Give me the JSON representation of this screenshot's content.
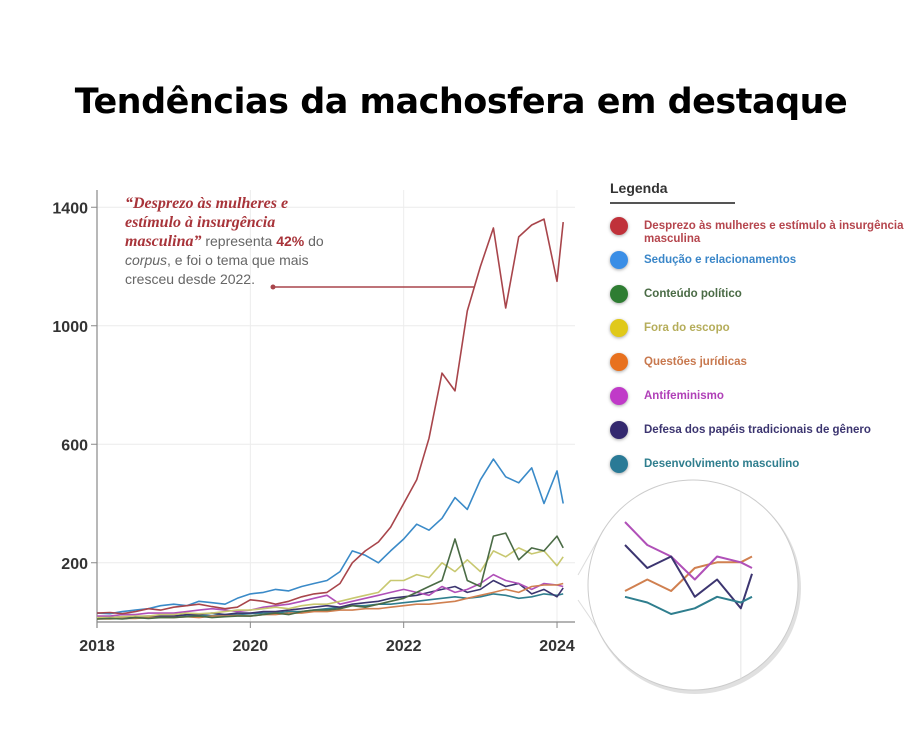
{
  "title": "Tendências da machosfera em destaque",
  "annotation": {
    "highlight": "“Desprezo às mulheres e estímulo à insurgência masculina”",
    "text1": " representa ",
    "percent": "42%",
    "text2": " do ",
    "italic": "corpus",
    "text3": ", e foi o tema que mais cresceu desde 2022."
  },
  "legend": {
    "title": "Legenda",
    "items": [
      {
        "label": "Desprezo às mulheres e estímulo à insurgência masculina",
        "color": "#c0313a",
        "text_color": "#b5454d"
      },
      {
        "label": "Sedução e relacionamentos",
        "color": "#3a8ee6",
        "text_color": "#3a86c8"
      },
      {
        "label": "Conteúdo político",
        "color": "#2e7d32",
        "text_color": "#4a6b45"
      },
      {
        "label": "Fora do escopo",
        "color": "#e0c91a",
        "text_color": "#b5ad5a"
      },
      {
        "label": "Questões jurídicas",
        "color": "#e8711e",
        "text_color": "#c8784e"
      },
      {
        "label": "Antifeminismo",
        "color": "#c03ac8",
        "text_color": "#b040b8"
      },
      {
        "label": "Defesa dos papéis tradicionais de gênero",
        "color": "#33286e",
        "text_color": "#3c3570"
      },
      {
        "label": "Desenvolvimento masculino",
        "color": "#2a7a96",
        "text_color": "#2f7e8e"
      }
    ]
  },
  "chart_data": {
    "type": "line",
    "title": "",
    "xlabel": "",
    "ylabel": "",
    "xlim": [
      2018,
      2024.1
    ],
    "ylim": [
      0,
      1450
    ],
    "x_ticks": [
      "2018",
      "2020",
      "2022",
      "2024"
    ],
    "y_ticks": [
      "200",
      "600",
      "1000",
      "1400"
    ],
    "grid": true,
    "legend_position": "right",
    "x": [
      2018.0,
      2018.17,
      2018.33,
      2018.5,
      2018.67,
      2018.83,
      2019.0,
      2019.17,
      2019.33,
      2019.5,
      2019.67,
      2019.83,
      2020.0,
      2020.17,
      2020.33,
      2020.5,
      2020.67,
      2020.83,
      2021.0,
      2021.17,
      2021.33,
      2021.5,
      2021.67,
      2021.83,
      2022.0,
      2022.17,
      2022.33,
      2022.5,
      2022.67,
      2022.83,
      2023.0,
      2023.17,
      2023.33,
      2023.5,
      2023.67,
      2023.83,
      2024.0,
      2024.08
    ],
    "series": [
      {
        "name": "Desprezo às mulheres e estímulo à insurgência masculina",
        "color": "#a8454b",
        "values": [
          30,
          32,
          28,
          35,
          45,
          40,
          50,
          55,
          60,
          52,
          45,
          50,
          75,
          70,
          60,
          70,
          85,
          95,
          100,
          130,
          200,
          240,
          270,
          320,
          400,
          480,
          620,
          840,
          780,
          1050,
          1200,
          1330,
          1060,
          1300,
          1340,
          1360,
          1150,
          1350
        ]
      },
      {
        "name": "Sedução e relacionamentos",
        "color": "#3a8ac8",
        "values": [
          30,
          28,
          35,
          40,
          45,
          55,
          60,
          55,
          70,
          65,
          60,
          80,
          95,
          100,
          110,
          105,
          120,
          130,
          140,
          170,
          240,
          225,
          200,
          240,
          280,
          330,
          310,
          350,
          420,
          380,
          480,
          550,
          490,
          470,
          520,
          400,
          510,
          400
        ]
      },
      {
        "name": "Conteúdo político",
        "color": "#4a6b45",
        "values": [
          10,
          12,
          10,
          15,
          12,
          15,
          15,
          18,
          20,
          15,
          18,
          20,
          20,
          25,
          30,
          25,
          35,
          40,
          40,
          45,
          55,
          50,
          60,
          70,
          80,
          100,
          120,
          140,
          280,
          140,
          120,
          290,
          300,
          210,
          250,
          240,
          290,
          250
        ]
      },
      {
        "name": "Fora do escopo",
        "color": "#c8c870",
        "values": [
          15,
          15,
          18,
          20,
          20,
          25,
          25,
          30,
          28,
          30,
          35,
          40,
          40,
          45,
          50,
          45,
          55,
          60,
          60,
          70,
          80,
          90,
          100,
          140,
          140,
          160,
          150,
          200,
          170,
          210,
          170,
          240,
          220,
          250,
          230,
          240,
          190,
          220
        ]
      },
      {
        "name": "Questões jurídicas",
        "color": "#d08050",
        "values": [
          10,
          10,
          12,
          12,
          15,
          15,
          15,
          18,
          15,
          20,
          20,
          22,
          20,
          25,
          25,
          30,
          30,
          35,
          35,
          40,
          40,
          45,
          45,
          50,
          55,
          60,
          60,
          65,
          70,
          80,
          90,
          100,
          110,
          100,
          120,
          125,
          125,
          130
        ]
      },
      {
        "name": "Antifeminismo",
        "color": "#b050b8",
        "values": [
          20,
          20,
          25,
          25,
          30,
          30,
          30,
          35,
          40,
          45,
          40,
          35,
          40,
          50,
          55,
          60,
          70,
          80,
          90,
          60,
          70,
          80,
          90,
          100,
          110,
          100,
          90,
          120,
          100,
          110,
          130,
          160,
          140,
          130,
          110,
          130,
          125,
          120
        ]
      },
      {
        "name": "Defesa dos papéis tradicionais de gênero",
        "color": "#3c3570",
        "values": [
          15,
          15,
          18,
          18,
          20,
          20,
          20,
          25,
          25,
          30,
          25,
          30,
          30,
          35,
          35,
          40,
          45,
          50,
          55,
          50,
          60,
          65,
          70,
          80,
          85,
          90,
          100,
          110,
          120,
          100,
          110,
          140,
          120,
          130,
          95,
          110,
          85,
          115
        ]
      },
      {
        "name": "Desenvolvimento masculino",
        "color": "#2f7e8e",
        "values": [
          12,
          12,
          15,
          15,
          18,
          18,
          20,
          20,
          22,
          22,
          25,
          25,
          28,
          30,
          30,
          35,
          35,
          40,
          45,
          50,
          55,
          55,
          60,
          60,
          65,
          70,
          75,
          80,
          85,
          80,
          85,
          95,
          90,
          80,
          85,
          95,
          90,
          95
        ]
      }
    ]
  }
}
